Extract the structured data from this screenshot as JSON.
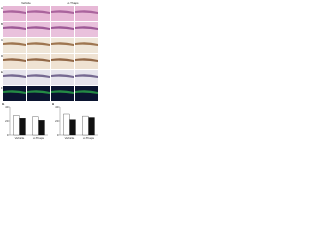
{
  "figure": {
    "group_headers": [
      "Vehicle",
      "α-Thaps"
    ],
    "row_labels": [
      "A",
      "B",
      "C",
      "D",
      "E",
      "F"
    ]
  },
  "chart_data": [
    {
      "type": "bar",
      "panel_label": "G",
      "categories": [
        "Vehicle",
        "α-Thaps"
      ],
      "series": [
        {
          "color": "#ffffff",
          "values": [
            28,
            26
          ]
        },
        {
          "color": "#111111",
          "values": [
            24,
            21
          ]
        }
      ],
      "ylim": [
        0,
        40
      ],
      "yticks": [
        0,
        20,
        40
      ]
    },
    {
      "type": "bar",
      "panel_label": "H",
      "categories": [
        "Vehicle",
        "α-Thaps"
      ],
      "series": [
        {
          "color": "#ffffff",
          "values": [
            30,
            27
          ]
        },
        {
          "color": "#111111",
          "values": [
            22,
            25
          ]
        }
      ],
      "ylim": [
        0,
        40
      ],
      "yticks": [
        0,
        20,
        40
      ]
    }
  ]
}
